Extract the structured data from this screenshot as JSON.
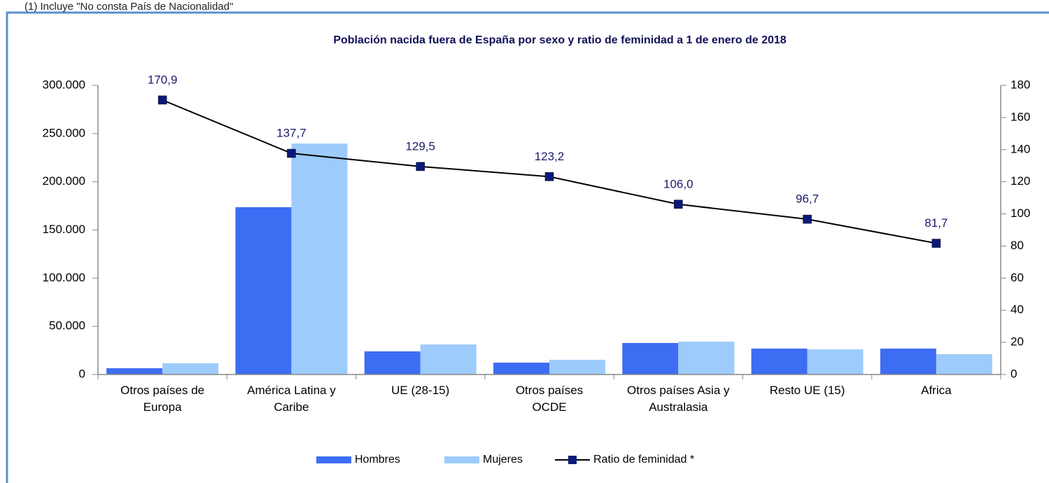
{
  "chart_data": {
    "type": "bar_line",
    "note": "(1) Incluye \"No consta País de Nacionalidad\"",
    "title": "Población nacida fuera de España por sexo y ratio de feminidad a 1 de enero de 2018",
    "categories": [
      [
        "Otros países de",
        "Europa"
      ],
      [
        "América Latina y",
        "Caribe"
      ],
      [
        "UE (28-15)"
      ],
      [
        "Otros países",
        "OCDE"
      ],
      [
        "Otros países Asia y",
        "Australasia"
      ],
      [
        "Resto UE (15)"
      ],
      [
        "Africa"
      ]
    ],
    "series": [
      {
        "name": "Hombres",
        "color": "#3d6df2",
        "values": [
          6500,
          173600,
          24000,
          12300,
          32700,
          26900,
          26900
        ]
      },
      {
        "name": "Mujeres",
        "color": "#9dcbfb",
        "values": [
          11600,
          239700,
          31200,
          15300,
          34100,
          26100,
          21100
        ]
      },
      {
        "name": "Ratio de feminidad *",
        "color": "#000000",
        "marker_color": "#0a1a7a",
        "axis": "y2",
        "values": [
          170.9,
          137.7,
          129.5,
          123.2,
          106.0,
          96.7,
          81.7
        ],
        "value_labels": [
          "170,9",
          "137,7",
          "129,5",
          "123,2",
          "106,0",
          "96,7",
          "81,7"
        ]
      }
    ],
    "ylim": [
      0,
      300000
    ],
    "yticks": [
      0,
      {
        "value": 50000,
        "label": "50.000"
      },
      {
        "value": 100000,
        "label": "100.000"
      },
      {
        "value": 150000,
        "label": "150.000"
      },
      {
        "value": 200000,
        "label": "200.000"
      },
      {
        "value": 250000,
        "label": "250.000"
      },
      {
        "value": 300000,
        "label": "300.000"
      }
    ],
    "y2lim": [
      0,
      180
    ],
    "y2ticks": [
      0,
      20,
      40,
      60,
      80,
      100,
      120,
      140,
      160,
      180
    ],
    "grid": false,
    "legend": "bottom"
  }
}
